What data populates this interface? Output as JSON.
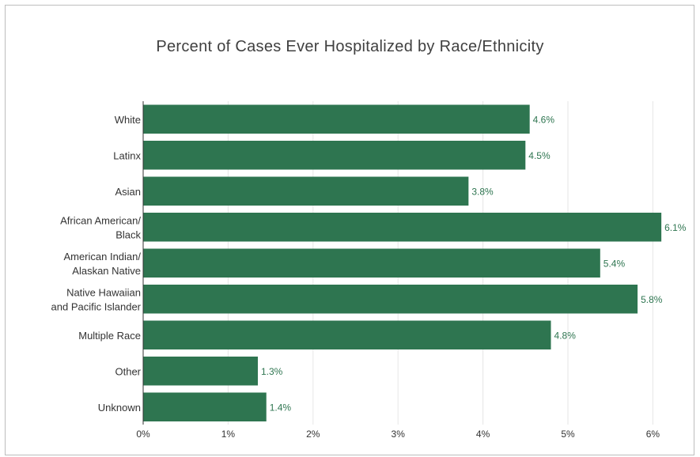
{
  "chart_data": {
    "type": "bar",
    "orientation": "horizontal",
    "title": "Percent of Cases Ever Hospitalized by Race/Ethnicity",
    "categories": [
      [
        "White"
      ],
      [
        "Latinx"
      ],
      [
        "Asian"
      ],
      [
        "African American/",
        "Black"
      ],
      [
        "American Indian/",
        "Alaskan Native"
      ],
      [
        "Native Hawaiian",
        "and Pacific Islander"
      ],
      [
        "Multiple Race"
      ],
      [
        "Other"
      ],
      [
        "Unknown"
      ]
    ],
    "values": [
      4.55,
      4.5,
      3.83,
      6.1,
      5.38,
      5.82,
      4.8,
      1.35,
      1.45
    ],
    "data_labels": [
      "4.6%",
      "4.5%",
      "3.8%",
      "6.1%",
      "5.4%",
      "5.8%",
      "4.8%",
      "1.3%",
      "1.4%"
    ],
    "xlim": [
      0,
      6.5
    ],
    "x_ticks": [
      0,
      1,
      2,
      3,
      4,
      5,
      6
    ],
    "x_tick_labels": [
      "0%",
      "1%",
      "2%",
      "3%",
      "4%",
      "5%",
      "6%"
    ],
    "grid": true,
    "legend": "none",
    "bar_color": "#2e7550"
  }
}
